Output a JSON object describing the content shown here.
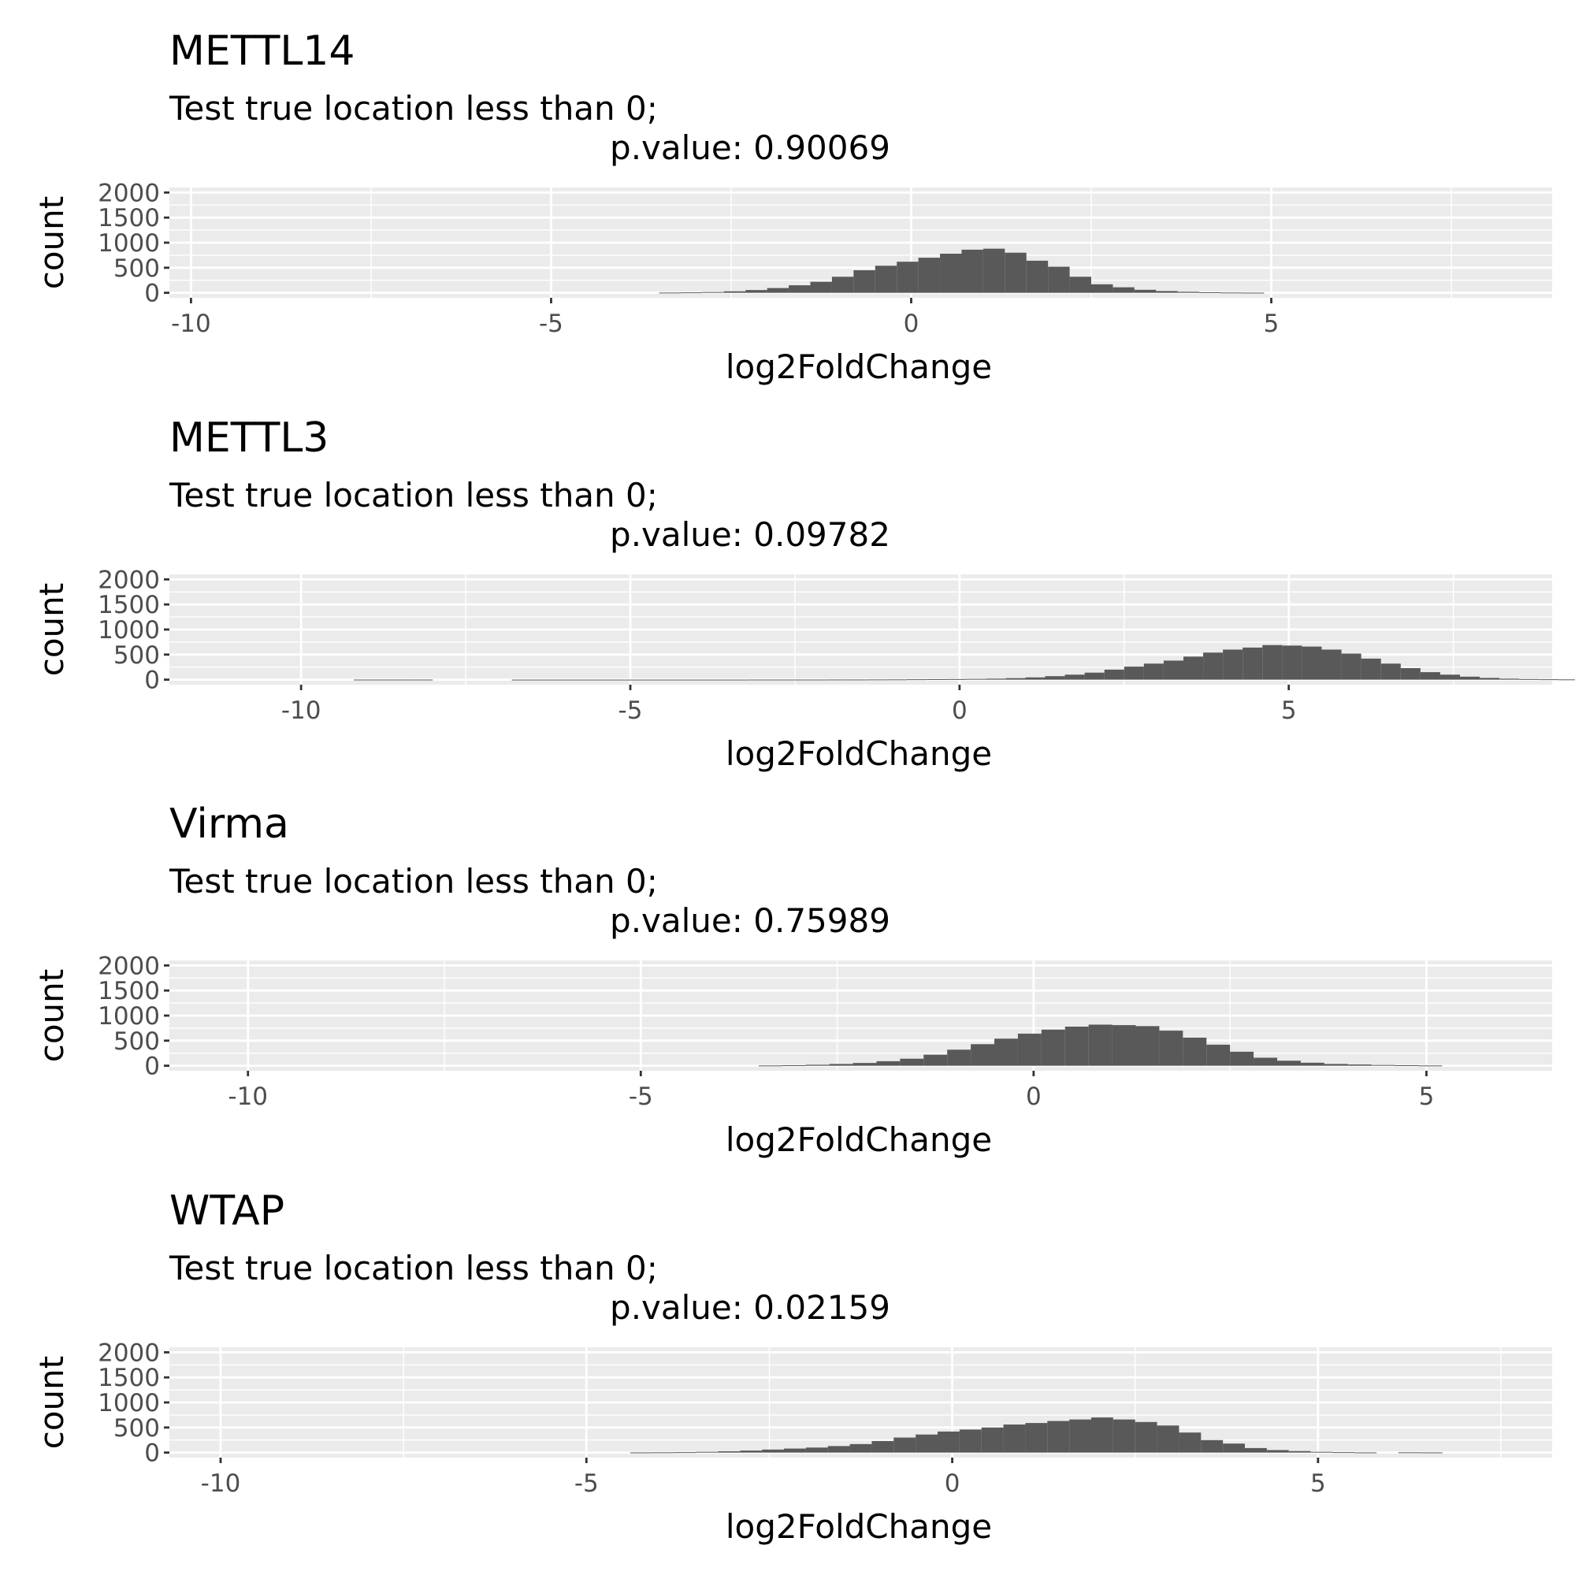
{
  "chart_data": [
    {
      "type": "bar",
      "title": "METTL14",
      "subtitle_line1": "Test true location less than 0;",
      "subtitle_line2": "p.value: 0.90069",
      "xlabel": "log2FoldChange",
      "ylabel": "count",
      "xlim": [
        -10.3,
        8.9
      ],
      "ylim": [
        -100,
        2100
      ],
      "xticks": [
        -10,
        -5,
        0,
        5
      ],
      "yticks": [
        0,
        500,
        1000,
        1500,
        2000
      ],
      "bin_width": 0.3,
      "bin_start": -3.5,
      "values": [
        4,
        8,
        15,
        30,
        55,
        95,
        150,
        220,
        320,
        450,
        540,
        620,
        700,
        780,
        860,
        880,
        800,
        640,
        520,
        320,
        170,
        110,
        60,
        35,
        20,
        10,
        5,
        3
      ],
      "grid": true,
      "legend": "none",
      "bar_color": "#595959",
      "panel_color": "#ebebeb"
    },
    {
      "type": "bar",
      "title": "METTL3",
      "subtitle_line1": "Test true location less than 0;",
      "subtitle_line2": "p.value: 0.09782",
      "xlabel": "log2FoldChange",
      "ylabel": "count",
      "xlim": [
        -12.0,
        9.0
      ],
      "ylim": [
        -100,
        2100
      ],
      "xticks": [
        -10,
        -5,
        0,
        5
      ],
      "yticks": [
        0,
        500,
        1000,
        1500,
        2000
      ],
      "bin_width": 0.3,
      "bin_start": -9.2,
      "values": [
        2,
        2,
        2,
        2,
        0,
        0,
        0,
        0,
        1,
        1,
        1,
        1,
        1,
        1,
        1,
        1,
        1,
        1,
        1,
        1,
        2,
        2,
        2,
        2,
        3,
        3,
        4,
        5,
        8,
        10,
        12,
        15,
        20,
        30,
        45,
        70,
        100,
        140,
        200,
        260,
        320,
        380,
        460,
        540,
        600,
        640,
        690,
        680,
        660,
        600,
        520,
        420,
        320,
        230,
        150,
        100,
        60,
        35,
        20,
        12,
        8,
        5,
        3,
        0,
        2,
        2,
        2,
        2
      ],
      "grid": true,
      "legend": "none",
      "bar_color": "#595959",
      "panel_color": "#ebebeb"
    },
    {
      "type": "bar",
      "title": "Virma",
      "subtitle_line1": "Test true location less than 0;",
      "subtitle_line2": "p.value: 0.75989",
      "xlabel": "log2FoldChange",
      "ylabel": "count",
      "xlim": [
        -11.0,
        6.6
      ],
      "ylim": [
        -100,
        2100
      ],
      "xticks": [
        -10,
        -5,
        0,
        5
      ],
      "yticks": [
        0,
        500,
        1000,
        1500,
        2000
      ],
      "bin_width": 0.3,
      "bin_start": -3.5,
      "values": [
        5,
        10,
        20,
        35,
        55,
        90,
        140,
        220,
        320,
        430,
        540,
        640,
        720,
        780,
        820,
        810,
        790,
        700,
        560,
        420,
        280,
        160,
        100,
        60,
        35,
        25,
        15,
        10,
        5
      ],
      "grid": true,
      "legend": "none",
      "bar_color": "#595959",
      "panel_color": "#ebebeb"
    },
    {
      "type": "bar",
      "title": "WTAP",
      "subtitle_line1": "Test true location less than 0;",
      "subtitle_line2": "p.value: 0.02159",
      "xlabel": "log2FoldChange",
      "ylabel": "count",
      "xlim": [
        -10.7,
        8.2
      ],
      "ylim": [
        -100,
        2100
      ],
      "xticks": [
        -10,
        -5,
        0,
        5
      ],
      "yticks": [
        0,
        500,
        1000,
        1500,
        2000
      ],
      "bin_width": 0.3,
      "bin_start": -4.4,
      "values": [
        3,
        5,
        8,
        15,
        25,
        40,
        60,
        80,
        100,
        130,
        170,
        230,
        300,
        360,
        420,
        460,
        500,
        560,
        590,
        630,
        660,
        700,
        660,
        610,
        540,
        400,
        250,
        180,
        90,
        50,
        30,
        15,
        8,
        3,
        0,
        5,
        3
      ],
      "grid": true,
      "legend": "none",
      "bar_color": "#595959",
      "panel_color": "#ebebeb"
    }
  ]
}
